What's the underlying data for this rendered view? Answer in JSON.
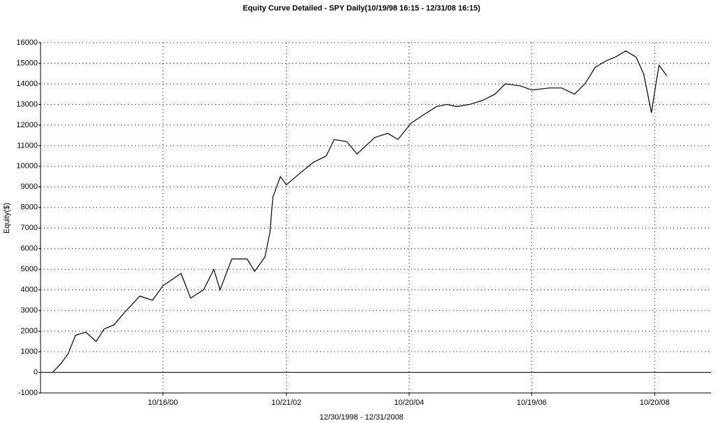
{
  "chart_data": {
    "type": "line",
    "title": "Equity Curve Detailed - SPY Daily(10/19/98 16:15 - 12/31/08 16:15)",
    "x_label": "12/30/1998 - 12/31/2008",
    "y_label": "Equity($)",
    "color": "#000000",
    "grid": true,
    "x": [
      "12/30/98",
      "02/15/99",
      "04/01/99",
      "05/15/99",
      "07/15/99",
      "09/15/99",
      "11/01/99",
      "12/30/99",
      "03/01/00",
      "06/01/00",
      "08/15/00",
      "10/16/00",
      "02/01/01",
      "03/30/01",
      "06/15/01",
      "08/15/01",
      "09/21/01",
      "11/30/01",
      "03/01/02",
      "04/15/02",
      "06/15/02",
      "07/15/02",
      "08/01/02",
      "09/15/02",
      "10/21/02",
      "01/15/03",
      "04/01/03",
      "06/15/03",
      "08/01/03",
      "10/15/03",
      "12/15/03",
      "03/30/04",
      "06/15/04",
      "08/15/04",
      "11/01/04",
      "01/15/05",
      "04/01/05",
      "06/01/05",
      "08/01/05",
      "10/15/05",
      "01/01/06",
      "03/15/06",
      "05/15/06",
      "08/15/06",
      "10/19/06",
      "02/01/07",
      "04/15/07",
      "07/01/07",
      "09/01/07",
      "11/01/07",
      "01/01/08",
      "03/01/08",
      "05/01/08",
      "07/01/08",
      "08/15/08",
      "10/01/08",
      "10/20/08",
      "11/15/08",
      "12/31/08"
    ],
    "values": [
      0,
      400,
      900,
      1800,
      1950,
      1500,
      2100,
      2300,
      2900,
      3700,
      3500,
      4200,
      4800,
      3600,
      4000,
      5000,
      4000,
      5500,
      5500,
      4900,
      5600,
      6800,
      8500,
      9500,
      9100,
      9700,
      10200,
      10500,
      11300,
      11200,
      10600,
      11400,
      11600,
      11300,
      12100,
      12500,
      12900,
      13000,
      12900,
      13000,
      13200,
      13500,
      14000,
      13900,
      13700,
      13800,
      13800,
      13500,
      14000,
      14800,
      15100,
      15300,
      15600,
      15300,
      14500,
      12600,
      13600,
      14900,
      14400
    ],
    "xlim": [
      "10/19/98",
      "09/21/09"
    ],
    "xticks": [
      "10/16/00",
      "10/21/02",
      "10/20/04",
      "10/19/06",
      "10/20/08"
    ],
    "ylim": [
      -1000,
      16000
    ],
    "yticks": [
      -1000,
      0,
      1000,
      2000,
      3000,
      4000,
      5000,
      6000,
      7000,
      8000,
      9000,
      10000,
      11000,
      12000,
      13000,
      14000,
      15000,
      16000
    ]
  }
}
